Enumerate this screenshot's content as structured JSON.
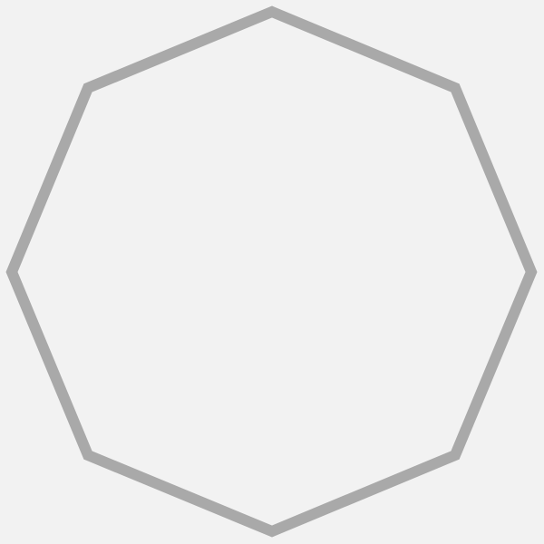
{
  "shape": {
    "kind": "octagon",
    "sides": 8,
    "filled": false
  },
  "colors": {
    "background": "#f2f2f2",
    "stroke": "#a9a9a9"
  }
}
